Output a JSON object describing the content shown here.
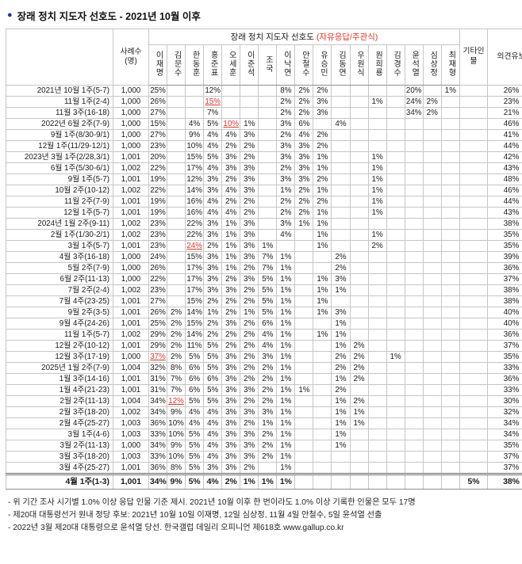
{
  "title": {
    "bullet": "●",
    "text": "장래 정치 지도자 선호도 - 2021년 10월 이후"
  },
  "table": {
    "sample_header": "사례수(명)",
    "span_header": {
      "main": "장래 정치 지도자 선호도 ",
      "paren": "(자유응답/주관식)"
    },
    "other_header": "기타인물",
    "reserve_header": "의견유보",
    "leaders": [
      "이재명",
      "김문수",
      "한동훈",
      "홍준표",
      "오세훈",
      "이준석",
      "조국",
      "이낙연",
      "안철수",
      "유승민",
      "김동연",
      "우원식",
      "원희룡",
      "김경수",
      "윤석열",
      "심상정",
      "최재형"
    ],
    "rows": [
      {
        "date": "2021년 10월 1주(5-7)",
        "n": "1,000",
        "cells": [
          "25%",
          "",
          "",
          "12%",
          "",
          "",
          "",
          "8%",
          "2%",
          "2%",
          "",
          "",
          "",
          "",
          "20%",
          "",
          "1%",
          "",
          "26%"
        ]
      },
      {
        "date": "11월 1주(2-4)",
        "n": "1,000",
        "cells": [
          "26%",
          "",
          "",
          "15%",
          "",
          "",
          "",
          "2%",
          "2%",
          "3%",
          "",
          "",
          "1%",
          "",
          "24%",
          "2%",
          "",
          "",
          "23%"
        ]
      },
      {
        "date": "11월 3주(16-18)",
        "n": "1,000",
        "cells": [
          "27%",
          "",
          "",
          "7%",
          "",
          "",
          "",
          "2%",
          "2%",
          "3%",
          "",
          "",
          "",
          "",
          "34%",
          "2%",
          "",
          "",
          "21%"
        ]
      },
      {
        "date": "2022년 6월 2주(7-9)",
        "n": "1,000",
        "cells": [
          "15%",
          "",
          "4%",
          "5%",
          "10%",
          "1%",
          "",
          "3%",
          "6%",
          "",
          "4%",
          "",
          "",
          "",
          "",
          "",
          "",
          "",
          "46%"
        ]
      },
      {
        "date": "9월 1주(8/30-9/1)",
        "n": "1,000",
        "cells": [
          "27%",
          "",
          "9%",
          "4%",
          "4%",
          "3%",
          "",
          "2%",
          "4%",
          "2%",
          "",
          "",
          "",
          "",
          "",
          "",
          "",
          "",
          "41%"
        ]
      },
      {
        "date": "12월 1주(11/29-12/1)",
        "n": "1,000",
        "cells": [
          "23%",
          "",
          "10%",
          "4%",
          "2%",
          "2%",
          "",
          "3%",
          "3%",
          "2%",
          "",
          "",
          "",
          "",
          "",
          "",
          "",
          "",
          "44%"
        ]
      },
      {
        "date": "2023년 3월 1주(2/28,3/1)",
        "n": "1,001",
        "cells": [
          "20%",
          "",
          "15%",
          "5%",
          "3%",
          "2%",
          "",
          "3%",
          "3%",
          "1%",
          "",
          "",
          "1%",
          "",
          "",
          "",
          "",
          "",
          "42%"
        ]
      },
      {
        "date": "6월 1주(5/30-6/1)",
        "n": "1,002",
        "cells": [
          "22%",
          "",
          "17%",
          "4%",
          "3%",
          "3%",
          "",
          "2%",
          "3%",
          "1%",
          "",
          "",
          "1%",
          "",
          "",
          "",
          "",
          "",
          "43%"
        ]
      },
      {
        "date": "9월 1주(5-7)",
        "n": "1,001",
        "cells": [
          "19%",
          "",
          "12%",
          "3%",
          "2%",
          "3%",
          "",
          "3%",
          "3%",
          "2%",
          "",
          "",
          "1%",
          "",
          "",
          "",
          "",
          "",
          "48%"
        ]
      },
      {
        "date": "10월 2주(10-12)",
        "n": "1,002",
        "cells": [
          "22%",
          "",
          "14%",
          "3%",
          "4%",
          "3%",
          "",
          "1%",
          "2%",
          "1%",
          "",
          "",
          "1%",
          "",
          "",
          "",
          "",
          "",
          "46%"
        ]
      },
      {
        "date": "11월 2주(7-9)",
        "n": "1,001",
        "cells": [
          "19%",
          "",
          "16%",
          "4%",
          "2%",
          "2%",
          "",
          "2%",
          "2%",
          "2%",
          "",
          "",
          "1%",
          "",
          "",
          "",
          "",
          "",
          "44%"
        ]
      },
      {
        "date": "12월 1주(5-7)",
        "n": "1,001",
        "cells": [
          "19%",
          "",
          "16%",
          "4%",
          "4%",
          "2%",
          "",
          "2%",
          "2%",
          "1%",
          "",
          "",
          "1%",
          "",
          "",
          "",
          "",
          "",
          "43%"
        ]
      },
      {
        "date": "2024년 1월 2주(9-11)",
        "n": "1,002",
        "cells": [
          "23%",
          "",
          "22%",
          "3%",
          "1%",
          "3%",
          "",
          "3%",
          "1%",
          "1%",
          "",
          "",
          "",
          "",
          "",
          "",
          "",
          "",
          "38%"
        ]
      },
      {
        "date": "2월 1주(1/30-2/1)",
        "n": "1,002",
        "cells": [
          "23%",
          "",
          "22%",
          "3%",
          "1%",
          "3%",
          "",
          "4%",
          "",
          "1%",
          "",
          "",
          "1%",
          "",
          "",
          "",
          "",
          "",
          "35%"
        ]
      },
      {
        "date": "3월 1주(5-7)",
        "n": "1,001",
        "cells": [
          "23%",
          "",
          "24%",
          "2%",
          "1%",
          "3%",
          "1%",
          "",
          "",
          "1%",
          "",
          "",
          "2%",
          "",
          "",
          "",
          "",
          "",
          "35%"
        ]
      },
      {
        "date": "4월 3주(16-18)",
        "n": "1,000",
        "cells": [
          "24%",
          "",
          "15%",
          "3%",
          "1%",
          "3%",
          "7%",
          "1%",
          "",
          "",
          "2%",
          "",
          "",
          "",
          "",
          "",
          "",
          "",
          "39%"
        ]
      },
      {
        "date": "5월 2주(7-9)",
        "n": "1,000",
        "cells": [
          "26%",
          "",
          "17%",
          "3%",
          "1%",
          "2%",
          "7%",
          "1%",
          "",
          "",
          "2%",
          "",
          "",
          "",
          "",
          "",
          "",
          "",
          "36%"
        ]
      },
      {
        "date": "6월 2주(11-13)",
        "n": "1,000",
        "cells": [
          "22%",
          "",
          "17%",
          "3%",
          "2%",
          "3%",
          "5%",
          "1%",
          "",
          "1%",
          "3%",
          "",
          "",
          "",
          "",
          "",
          "",
          "",
          "37%"
        ]
      },
      {
        "date": "7월 2주(2-4)",
        "n": "1,002",
        "cells": [
          "23%",
          "",
          "17%",
          "3%",
          "3%",
          "2%",
          "5%",
          "1%",
          "",
          "1%",
          "1%",
          "",
          "",
          "",
          "",
          "",
          "",
          "",
          "38%"
        ]
      },
      {
        "date": "7월 4주(23-25)",
        "n": "1,001",
        "cells": [
          "27%",
          "",
          "15%",
          "2%",
          "2%",
          "2%",
          "5%",
          "1%",
          "",
          "1%",
          "",
          "",
          "",
          "",
          "",
          "",
          "",
          "",
          "38%"
        ]
      },
      {
        "date": "9월 2주(3-5)",
        "n": "1,001",
        "cells": [
          "26%",
          "2%",
          "14%",
          "1%",
          "2%",
          "1%",
          "5%",
          "1%",
          "",
          "1%",
          "3%",
          "",
          "",
          "",
          "",
          "",
          "",
          "",
          "40%"
        ]
      },
      {
        "date": "9월 4주(24-26)",
        "n": "1,001",
        "cells": [
          "25%",
          "2%",
          "15%",
          "2%",
          "3%",
          "2%",
          "6%",
          "1%",
          "",
          "",
          "1%",
          "",
          "",
          "",
          "",
          "",
          "",
          "",
          "40%"
        ]
      },
      {
        "date": "11월 1주(5-7)",
        "n": "1,002",
        "cells": [
          "29%",
          "2%",
          "14%",
          "2%",
          "2%",
          "2%",
          "4%",
          "1%",
          "",
          "1%",
          "1%",
          "",
          "",
          "",
          "",
          "",
          "",
          "",
          "36%"
        ]
      },
      {
        "date": "12월 2주(10-12)",
        "n": "1,001",
        "cells": [
          "29%",
          "2%",
          "11%",
          "5%",
          "2%",
          "2%",
          "4%",
          "1%",
          "",
          "",
          "1%",
          "2%",
          "",
          "",
          "",
          "",
          "",
          "",
          "37%"
        ]
      },
      {
        "date": "12월 3주(17-19)",
        "n": "1,000",
        "cells": [
          "37%",
          "2%",
          "5%",
          "5%",
          "3%",
          "2%",
          "3%",
          "1%",
          "",
          "",
          "2%",
          "2%",
          "",
          "1%",
          "",
          "",
          "",
          "",
          "35%"
        ]
      },
      {
        "date": "2025년 1월 2주(7-9)",
        "n": "1,004",
        "cells": [
          "32%",
          "8%",
          "6%",
          "5%",
          "3%",
          "2%",
          "2%",
          "1%",
          "",
          "",
          "2%",
          "2%",
          "",
          "",
          "",
          "",
          "",
          "",
          "33%"
        ]
      },
      {
        "date": "1월 3주(14-16)",
        "n": "1,001",
        "cells": [
          "31%",
          "7%",
          "6%",
          "6%",
          "3%",
          "2%",
          "2%",
          "1%",
          "",
          "",
          "1%",
          "2%",
          "",
          "",
          "",
          "",
          "",
          "",
          "36%"
        ]
      },
      {
        "date": "1월 4주(21-23)",
        "n": "1,001",
        "cells": [
          "31%",
          "7%",
          "6%",
          "5%",
          "3%",
          "3%",
          "2%",
          "1%",
          "1%",
          "",
          "2%",
          "",
          "",
          "",
          "",
          "",
          "",
          "",
          "33%"
        ]
      },
      {
        "date": "2월 2주(11-13)",
        "n": "1,004",
        "cells": [
          "34%",
          "12%",
          "5%",
          "5%",
          "3%",
          "2%",
          "2%",
          "1%",
          "",
          "",
          "1%",
          "2%",
          "",
          "",
          "",
          "",
          "",
          "",
          "30%"
        ]
      },
      {
        "date": "2월 3주(18-20)",
        "n": "1,002",
        "cells": [
          "34%",
          "9%",
          "4%",
          "4%",
          "3%",
          "3%",
          "3%",
          "1%",
          "",
          "",
          "1%",
          "1%",
          "",
          "",
          "",
          "",
          "",
          "",
          "32%"
        ]
      },
      {
        "date": "2월 4주(25-27)",
        "n": "1,003",
        "cells": [
          "36%",
          "10%",
          "4%",
          "4%",
          "3%",
          "2%",
          "1%",
          "1%",
          "",
          "",
          "1%",
          "1%",
          "",
          "",
          "",
          "",
          "",
          "",
          "34%"
        ]
      },
      {
        "date": "3월 1주(4-6)",
        "n": "1,003",
        "cells": [
          "33%",
          "10%",
          "5%",
          "4%",
          "3%",
          "3%",
          "2%",
          "1%",
          "",
          "",
          "1%",
          "",
          "",
          "",
          "",
          "",
          "",
          "",
          "34%"
        ]
      },
      {
        "date": "3월 2주(11-13)",
        "n": "1,000",
        "cells": [
          "34%",
          "9%",
          "5%",
          "4%",
          "3%",
          "3%",
          "2%",
          "1%",
          "",
          "",
          "1%",
          "",
          "",
          "",
          "",
          "",
          "",
          "",
          "35%"
        ]
      },
      {
        "date": "3월 3주(18-20)",
        "n": "1,003",
        "cells": [
          "33%",
          "10%",
          "5%",
          "4%",
          "3%",
          "3%",
          "2%",
          "1%",
          "",
          "",
          "",
          "",
          "",
          "",
          "",
          "",
          "",
          "",
          "37%"
        ]
      },
      {
        "date": "3월 4주(25-27)",
        "n": "1,001",
        "cells": [
          "36%",
          "8%",
          "5%",
          "3%",
          "3%",
          "2%",
          "",
          "1%",
          "",
          "",
          "",
          "",
          "",
          "",
          "",
          "",
          "",
          "",
          "37%"
        ]
      },
      {
        "date": "4월 1주(1-3)",
        "n": "1,001",
        "bold": true,
        "cells": [
          "34%",
          "9%",
          "5%",
          "4%",
          "2%",
          "1%",
          "1%",
          "1%",
          "",
          "",
          "",
          "",
          "",
          "",
          "",
          "",
          "",
          "5%",
          "38%"
        ]
      }
    ],
    "highlights": [
      {
        "row": 1,
        "col": 3
      },
      {
        "row": 3,
        "col": 4
      },
      {
        "row": 14,
        "col": 2
      },
      {
        "row": 24,
        "col": 0
      },
      {
        "row": 28,
        "col": 1
      }
    ]
  },
  "footnotes": [
    "- 위 기간 조사 시기별 1.0% 이상 응답 인물 기준 제시. 2021년 10월 이후 한 번이라도 1.0% 이상 기록한 인물은 모두 17명",
    "- 제20대 대통령선거 원내 정당 후보: 2021년 10월 10일 이재명, 12일 심상정, 11월 4일 안철수, 5일 윤석열 선출",
    "- 2022년 3월 제20대 대통령으로 윤석열 당선. 한국갤럽 데일리 오피니언 제618호 www.gallup.co.kr"
  ],
  "colors": {
    "accent_red": "#d6372f",
    "bullet_navy": "#1c3e92"
  }
}
